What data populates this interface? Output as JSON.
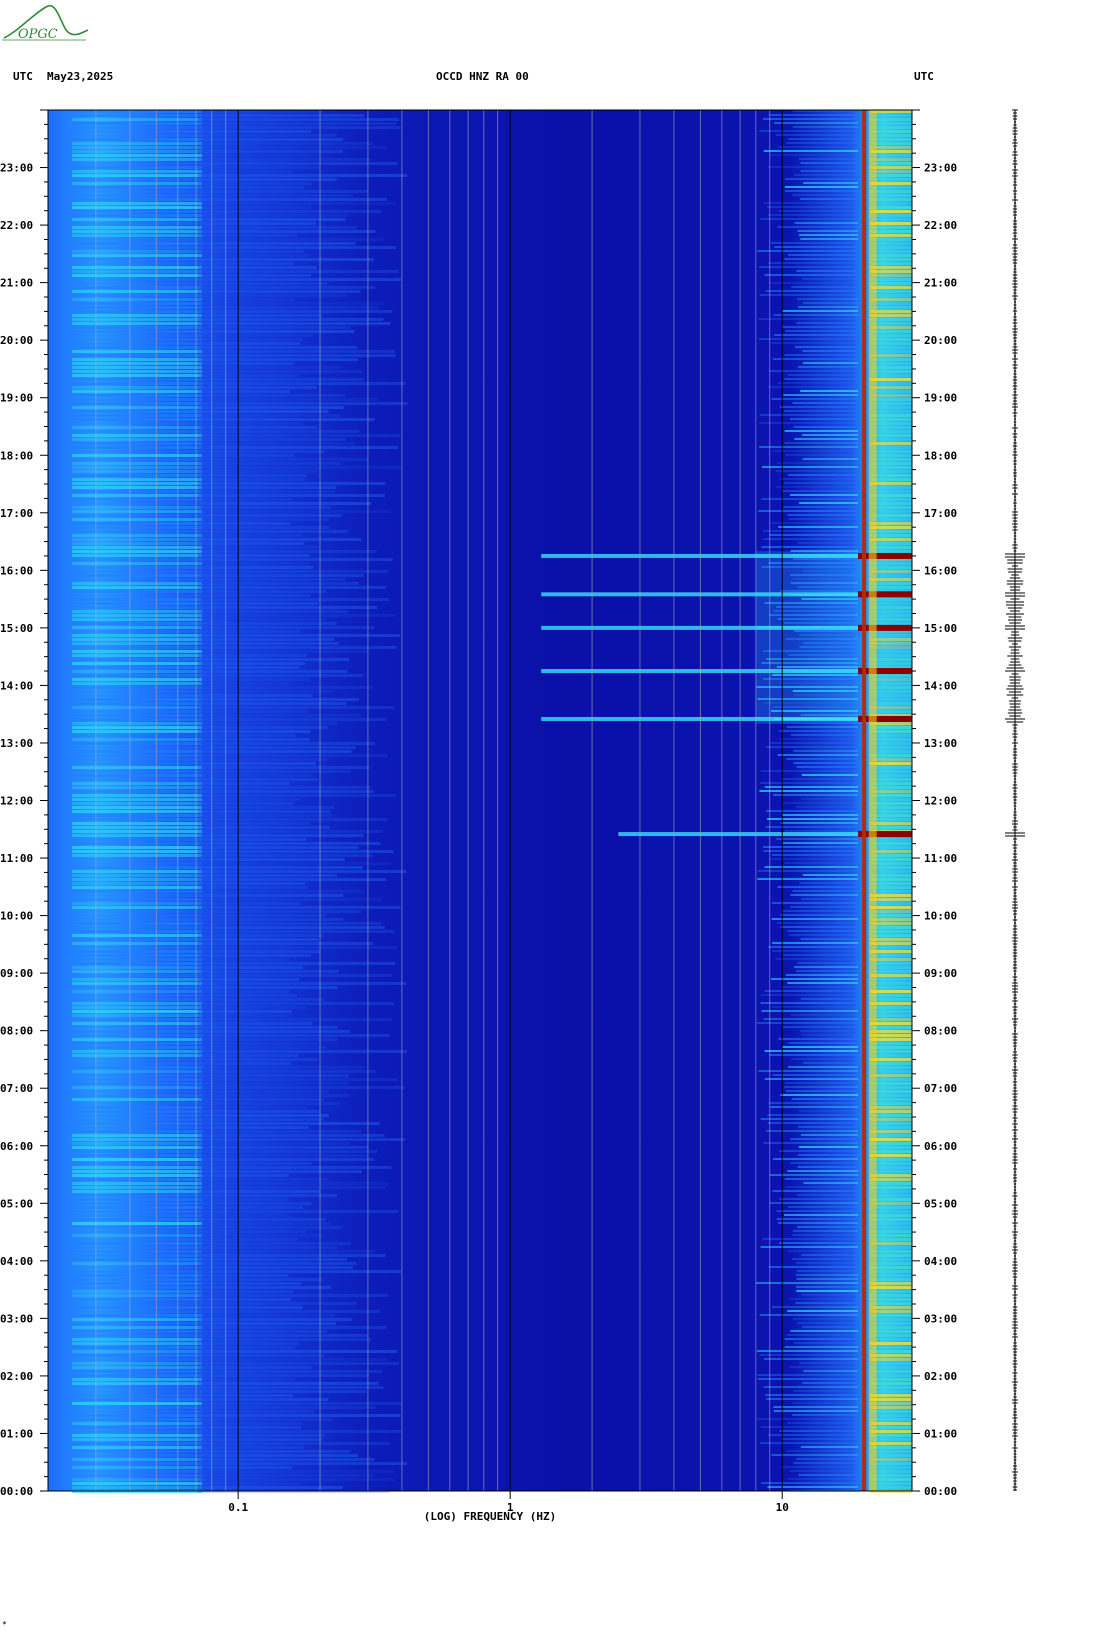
{
  "header": {
    "tz_left": "UTC",
    "date": "May23,2025",
    "station": "OCCD HNZ RA 00",
    "tz_right": "UTC"
  },
  "logo": {
    "text": "OPGC",
    "color": "#2f8a3a"
  },
  "colors": {
    "background_deep": "#0a10a8",
    "low_freq_band": "#1f7dff",
    "strong_band": "#8b0000",
    "tick": "#000000",
    "grid_minor": "#a7a7a7"
  },
  "chart_data": {
    "type": "heatmap",
    "title": "OCCD HNZ RA 00",
    "xlabel": "(LOG) FREQUENCY (HZ)",
    "x_scale": "log",
    "xlim": [
      0.02,
      30
    ],
    "x_ticks": [
      {
        "value": 0.1,
        "label": "0.1"
      },
      {
        "value": 1,
        "label": "1"
      },
      {
        "value": 10,
        "label": "10"
      }
    ],
    "ylabel": "UTC",
    "ylim_hours": [
      0,
      24
    ],
    "y_ticks": [
      "00:00",
      "01:00",
      "02:00",
      "03:00",
      "04:00",
      "05:00",
      "06:00",
      "07:00",
      "08:00",
      "09:00",
      "10:00",
      "11:00",
      "12:00",
      "13:00",
      "14:00",
      "15:00",
      "16:00",
      "17:00",
      "18:00",
      "19:00",
      "20:00",
      "21:00",
      "22:00",
      "23:00"
    ],
    "persistent_lines_hz": [
      20,
      21.5
    ],
    "active_period_utc": [
      "13:20",
      "16:20"
    ],
    "event_times_utc": [
      "11:25",
      "13:25",
      "14:15",
      "15:00",
      "15:35",
      "16:15"
    ]
  },
  "corner_mark": "*"
}
